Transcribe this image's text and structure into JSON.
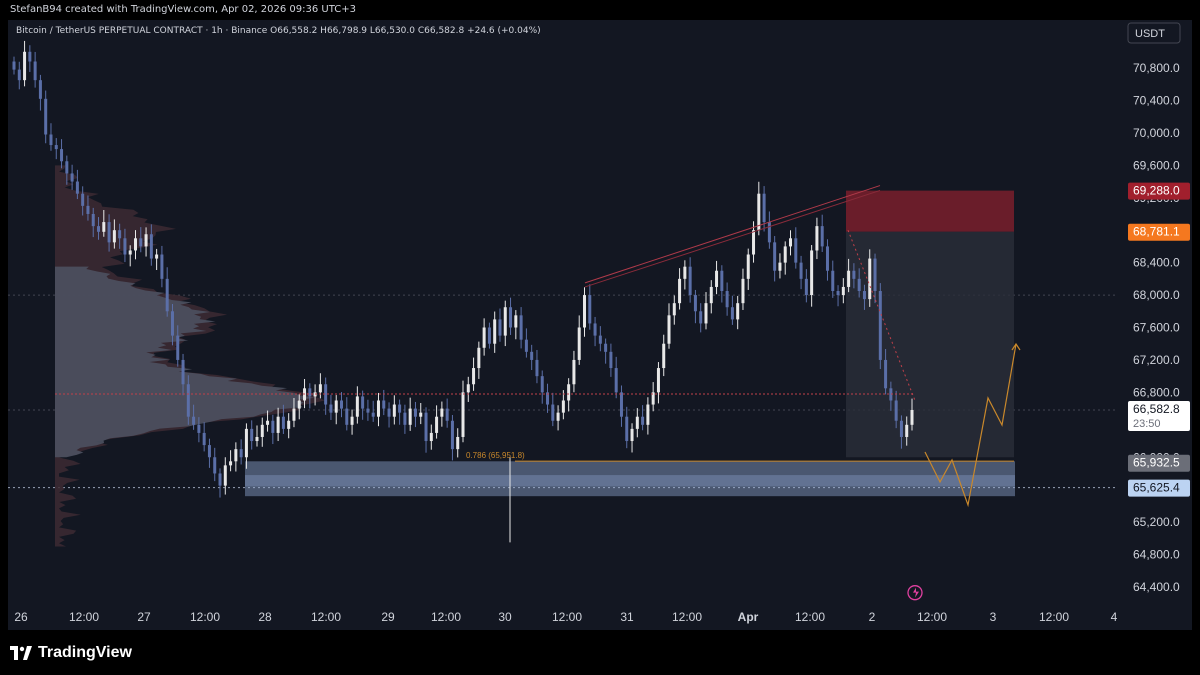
{
  "header": {
    "attribution": "StefanB94 created with TradingView.com, Apr 02, 2026 09:36 UTC+3"
  },
  "legend": {
    "text": "Bitcoin / TetherUS PERPETUAL CONTRACT · 1h · Binance  O66,558.2  H66,798.9  L66,530.0  C66,582.8  +24.6 (+0.04%)"
  },
  "currency_button": "USDT",
  "brand": "TradingView",
  "colors": {
    "background": "#131722",
    "up_candle": "#e8e8e8",
    "down_candle": "#5b6fa8",
    "stop_zone": "#7a1f2b",
    "target_zone": "#2a2e39",
    "support_zone": "#8fa6d0",
    "projection": "#c9882b",
    "current_price_label": "#ffffff",
    "orange_label": "#f5781f",
    "red_label": "#a11f2d"
  },
  "chart_data": {
    "type": "candlestick",
    "symbol": "Bitcoin / TetherUS PERPETUAL CONTRACT",
    "interval": "1h",
    "exchange": "Binance",
    "ohlc": {
      "open": 66558.2,
      "high": 66798.9,
      "low": 66530.0,
      "close": 66582.8,
      "change": "+24.6 (+0.04%)"
    },
    "ylim": [
      64200,
      71200
    ],
    "y_ticks": [
      "70,800.0",
      "70,400.0",
      "70,000.0",
      "69,600.0",
      "69,200.0",
      "68,400.0",
      "68,000.0",
      "67,600.0",
      "67,200.0",
      "66,800.0",
      "66,000.0",
      "65,200.0",
      "64,800.0",
      "64,400.0"
    ],
    "y_tick_values": [
      70800,
      70400,
      70000,
      69600,
      69200,
      68400,
      68000,
      67600,
      67200,
      66800,
      66000,
      65200,
      64800,
      64400
    ],
    "x_ticks": [
      "26",
      "12:00",
      "27",
      "12:00",
      "28",
      "12:00",
      "29",
      "12:00",
      "30",
      "12:00",
      "31",
      "12:00",
      "Apr",
      "12:00",
      "2",
      "12:00",
      "3",
      "12:00",
      "4"
    ],
    "price_labels": [
      {
        "value": 69288.0,
        "text": "69,288.0",
        "color": "#a11f2d"
      },
      {
        "value": 68781.1,
        "text": "68,781.1",
        "color": "#f5781f"
      },
      {
        "value": 66582.8,
        "text": "66,582.8",
        "sub": "23:50",
        "color": "#ffffff"
      },
      {
        "value": 65932.5,
        "text": "65,932.5",
        "color": "#6b6e78"
      },
      {
        "value": 65625.4,
        "text": "65,625.4",
        "color": "#bcd3f2"
      }
    ],
    "fib_label": "0.786 (65,951.8)",
    "closes": [
      70780,
      70650,
      71000,
      70880,
      70650,
      70420,
      69980,
      69850,
      69800,
      69650,
      69500,
      69400,
      69250,
      69100,
      69000,
      68850,
      68780,
      68900,
      68650,
      68800,
      68700,
      68500,
      68550,
      68700,
      68600,
      68750,
      68450,
      68500,
      68200,
      67800,
      67500,
      67200,
      66900,
      66500,
      66400,
      66300,
      66150,
      66000,
      65800,
      65650,
      65900,
      65950,
      66100,
      66000,
      66350,
      66200,
      66250,
      66400,
      66450,
      66300,
      66500,
      66350,
      66450,
      66600,
      66700,
      66850,
      66750,
      66800,
      66900,
      66650,
      66550,
      66700,
      66600,
      66400,
      66500,
      66750,
      66600,
      66550,
      66500,
      66700,
      66600,
      66500,
      66650,
      66550,
      66400,
      66600,
      66500,
      66550,
      66200,
      66300,
      66500,
      66600,
      66450,
      66100,
      66250,
      66800,
      66900,
      67100,
      67350,
      67600,
      67400,
      67700,
      67500,
      67850,
      67600,
      67750,
      67450,
      67300,
      67200,
      67000,
      66800,
      66650,
      66450,
      66550,
      66700,
      66900,
      67200,
      67600,
      68000,
      67650,
      67500,
      67400,
      67300,
      67100,
      66800,
      66500,
      66200,
      66350,
      66500,
      66400,
      66650,
      66800,
      67100,
      67400,
      67750,
      67900,
      68200,
      68350,
      68000,
      67800,
      67650,
      67900,
      68100,
      68300,
      68050,
      67850,
      67700,
      67900,
      68200,
      68500,
      68800,
      69250,
      68900,
      68650,
      68300,
      68400,
      68600,
      68700,
      68400,
      68200,
      68000,
      68550,
      68850,
      68600,
      68300,
      68050,
      68000,
      68100,
      68300,
      68200,
      68050,
      67950,
      68450,
      68050,
      67200,
      66850,
      66700,
      66450,
      66250,
      66400,
      66582.8
    ],
    "projection_path": [
      [
        925,
        452
      ],
      [
        940,
        482
      ],
      [
        952,
        460
      ],
      [
        968,
        505
      ],
      [
        988,
        398
      ],
      [
        1002,
        425
      ],
      [
        1016,
        344
      ]
    ]
  }
}
